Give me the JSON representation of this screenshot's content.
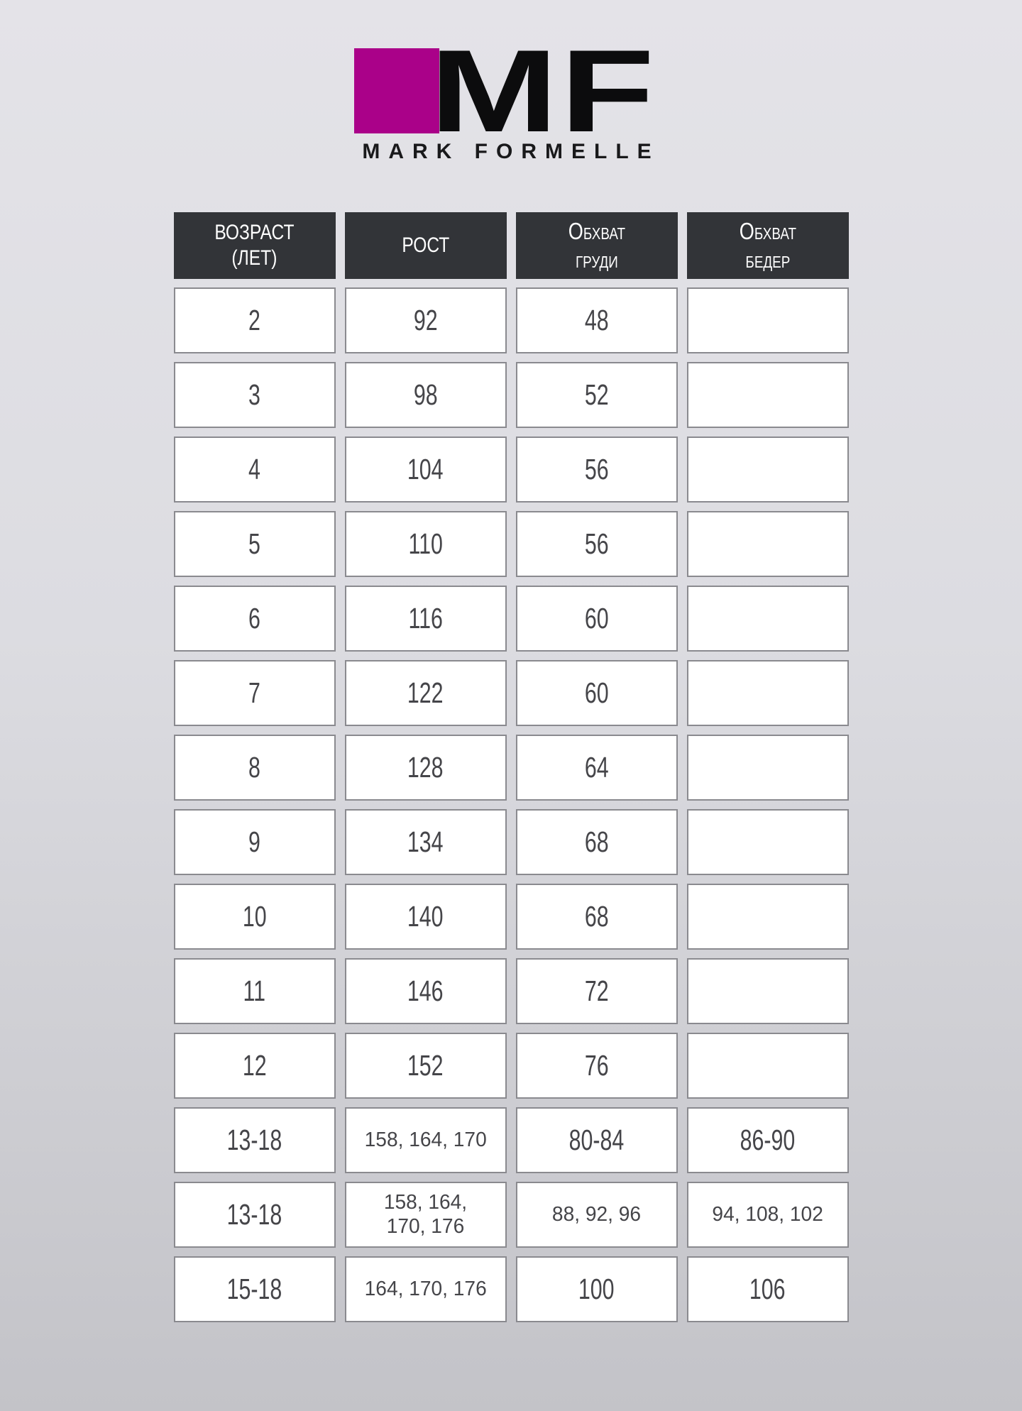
{
  "brand": {
    "mf_monogram": "MF",
    "name": "MARK FORMELLE",
    "square_color": "#aa0189"
  },
  "chart_data": {
    "type": "table",
    "columns": [
      "ВОЗРАСТ (ЛЕТ)",
      "РОСТ",
      "ОБХВАТ ГРУДИ",
      "ОБХВАТ БЕДЕР"
    ],
    "header_display": [
      "ВОЗРАСТ\n(ЛЕТ)",
      "РОСТ",
      "Обхват\nгруди",
      "Обхват\nбедер"
    ],
    "rows": [
      [
        "2",
        "92",
        "48",
        ""
      ],
      [
        "3",
        "98",
        "52",
        ""
      ],
      [
        "4",
        "104",
        "56",
        ""
      ],
      [
        "5",
        "110",
        "56",
        ""
      ],
      [
        "6",
        "116",
        "60",
        ""
      ],
      [
        "7",
        "122",
        "60",
        ""
      ],
      [
        "8",
        "128",
        "64",
        ""
      ],
      [
        "9",
        "134",
        "68",
        ""
      ],
      [
        "10",
        "140",
        "68",
        ""
      ],
      [
        "11",
        "146",
        "72",
        ""
      ],
      [
        "12",
        "152",
        "76",
        ""
      ],
      [
        "13-18",
        "158, 164, 170",
        "80-84",
        "86-90"
      ],
      [
        "13-18",
        "158, 164,\n170, 176",
        "88, 92, 96",
        "94, 108, 102"
      ],
      [
        "15-18",
        "164, 170, 176",
        "100",
        "106"
      ]
    ]
  },
  "colors": {
    "header_bg": "#323438",
    "cell_border": "#8a8a8f",
    "cell_text": "#454549",
    "background_top": "#e4e3e8",
    "background_bottom": "#c3c3c8"
  }
}
